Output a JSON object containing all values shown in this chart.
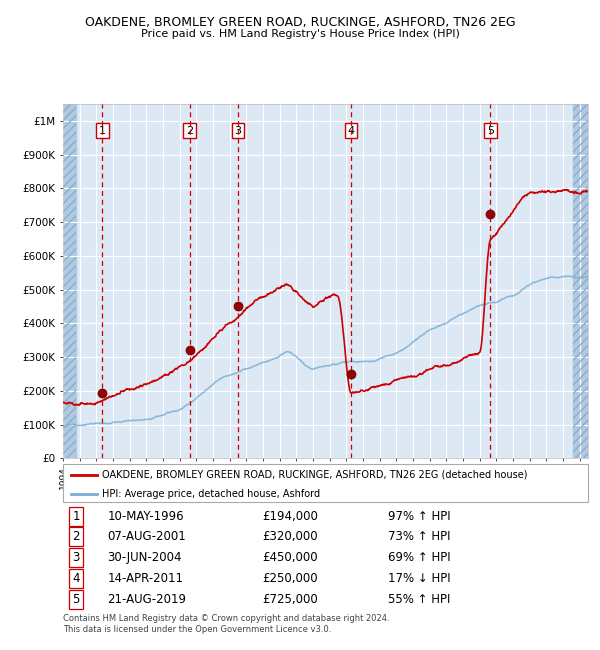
{
  "title": "OAKDENE, BROMLEY GREEN ROAD, RUCKINGE, ASHFORD, TN26 2EG",
  "subtitle": "Price paid vs. HM Land Registry's House Price Index (HPI)",
  "legend_line1": "OAKDENE, BROMLEY GREEN ROAD, RUCKINGE, ASHFORD, TN26 2EG (detached house)",
  "legend_line2": "HPI: Average price, detached house, Ashford",
  "footer1": "Contains HM Land Registry data © Crown copyright and database right 2024.",
  "footer2": "This data is licensed under the Open Government Licence v3.0.",
  "transactions": [
    {
      "num": 1,
      "date": "10-MAY-1996",
      "price": 194000,
      "pct": "97%",
      "dir": "↑",
      "x_year": 1996.36
    },
    {
      "num": 2,
      "date": "07-AUG-2001",
      "price": 320000,
      "pct": "73%",
      "dir": "↑",
      "x_year": 2001.6
    },
    {
      "num": 3,
      "date": "30-JUN-2004",
      "price": 450000,
      "pct": "69%",
      "dir": "↑",
      "x_year": 2004.5
    },
    {
      "num": 4,
      "date": "14-APR-2011",
      "price": 250000,
      "pct": "17%",
      "dir": "↓",
      "x_year": 2011.28
    },
    {
      "num": 5,
      "date": "21-AUG-2019",
      "price": 725000,
      "pct": "55%",
      "dir": "↑",
      "x_year": 2019.64
    }
  ],
  "xlim": [
    1994,
    2025.5
  ],
  "ylim": [
    0,
    1050000
  ],
  "yticks": [
    0,
    100000,
    200000,
    300000,
    400000,
    500000,
    600000,
    700000,
    800000,
    900000,
    1000000
  ],
  "ytick_labels": [
    "£0",
    "£100K",
    "£200K",
    "£300K",
    "£400K",
    "£500K",
    "£600K",
    "£700K",
    "£800K",
    "£900K",
    "£1M"
  ],
  "background_color": "#dce9f5",
  "grid_color": "#ffffff",
  "hatch_color": "#b0c8e0",
  "red_color": "#cc0000",
  "blue_color": "#7aadd4",
  "dot_color": "#990000",
  "vline_color": "#cc0000",
  "hpi_keypoints": [
    [
      1994.0,
      95000
    ],
    [
      1995.0,
      103000
    ],
    [
      1996.0,
      108000
    ],
    [
      1997.0,
      115000
    ],
    [
      1998.0,
      122000
    ],
    [
      1999.0,
      133000
    ],
    [
      2000.0,
      152000
    ],
    [
      2001.0,
      172000
    ],
    [
      2002.0,
      205000
    ],
    [
      2003.0,
      240000
    ],
    [
      2004.0,
      268000
    ],
    [
      2005.0,
      285000
    ],
    [
      2006.0,
      305000
    ],
    [
      2007.0,
      325000
    ],
    [
      2007.5,
      335000
    ],
    [
      2008.0,
      318000
    ],
    [
      2008.5,
      295000
    ],
    [
      2009.0,
      285000
    ],
    [
      2009.5,
      290000
    ],
    [
      2010.0,
      300000
    ],
    [
      2010.5,
      305000
    ],
    [
      2011.0,
      308000
    ],
    [
      2012.0,
      305000
    ],
    [
      2013.0,
      310000
    ],
    [
      2014.0,
      330000
    ],
    [
      2015.0,
      355000
    ],
    [
      2016.0,
      385000
    ],
    [
      2017.0,
      405000
    ],
    [
      2018.0,
      430000
    ],
    [
      2019.0,
      455000
    ],
    [
      2020.0,
      470000
    ],
    [
      2021.0,
      490000
    ],
    [
      2022.0,
      520000
    ],
    [
      2023.0,
      535000
    ],
    [
      2024.0,
      542000
    ],
    [
      2025.5,
      548000
    ]
  ],
  "prop_keypoints": [
    [
      1994.0,
      165000
    ],
    [
      1995.0,
      175000
    ],
    [
      1996.36,
      194000
    ],
    [
      1997.0,
      205000
    ],
    [
      1998.0,
      228000
    ],
    [
      1999.0,
      248000
    ],
    [
      2000.0,
      278000
    ],
    [
      2001.6,
      320000
    ],
    [
      2002.0,
      340000
    ],
    [
      2003.0,
      390000
    ],
    [
      2004.5,
      450000
    ],
    [
      2005.0,
      480000
    ],
    [
      2006.0,
      520000
    ],
    [
      2007.0,
      565000
    ],
    [
      2007.5,
      575000
    ],
    [
      2008.0,
      555000
    ],
    [
      2008.5,
      530000
    ],
    [
      2009.0,
      510000
    ],
    [
      2009.5,
      520000
    ],
    [
      2010.0,
      535000
    ],
    [
      2010.5,
      530000
    ],
    [
      2011.28,
      250000
    ],
    [
      2011.5,
      255000
    ],
    [
      2012.0,
      265000
    ],
    [
      2013.0,
      280000
    ],
    [
      2014.0,
      295000
    ],
    [
      2015.0,
      310000
    ],
    [
      2016.0,
      330000
    ],
    [
      2017.0,
      355000
    ],
    [
      2018.0,
      375000
    ],
    [
      2019.0,
      388000
    ],
    [
      2019.64,
      725000
    ],
    [
      2020.0,
      740000
    ],
    [
      2021.0,
      800000
    ],
    [
      2022.0,
      850000
    ],
    [
      2023.0,
      855000
    ],
    [
      2024.0,
      860000
    ],
    [
      2025.0,
      865000
    ],
    [
      2025.5,
      868000
    ]
  ]
}
